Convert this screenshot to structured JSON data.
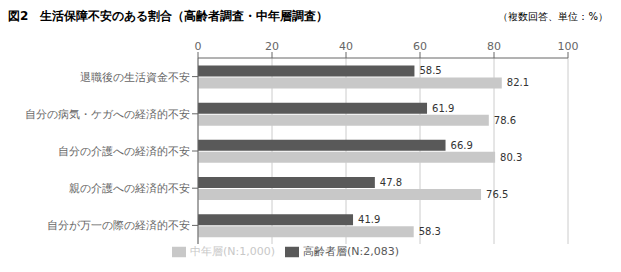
{
  "chart_data": {
    "type": "bar",
    "orientation": "horizontal",
    "title": "図2　生活保障不安のある割合（高齢者調査・中年層調査）",
    "subtitle": "（複数回答、単位：%）",
    "categories": [
      "自分が万一の際の経済的不安",
      "親の介護への経済的不安",
      "自分の介護への経済的不安",
      "自分の病気・ケガへの経済的不安",
      "退職後の生活資金不安"
    ],
    "series": [
      {
        "name": "高齢者層(N:2,083)",
        "color": "#595959",
        "values": [
          41.9,
          47.8,
          66.9,
          61.9,
          58.5
        ]
      },
      {
        "name": "中年層(N:1,000)",
        "color": "#c8c8c8",
        "values": [
          58.3,
          76.5,
          80.3,
          78.6,
          82.1
        ]
      }
    ],
    "xlim": [
      0,
      100
    ],
    "xticks": [
      0,
      20,
      40,
      60,
      80,
      100
    ],
    "grid": true,
    "data_labels": true,
    "legend": "bottom"
  }
}
